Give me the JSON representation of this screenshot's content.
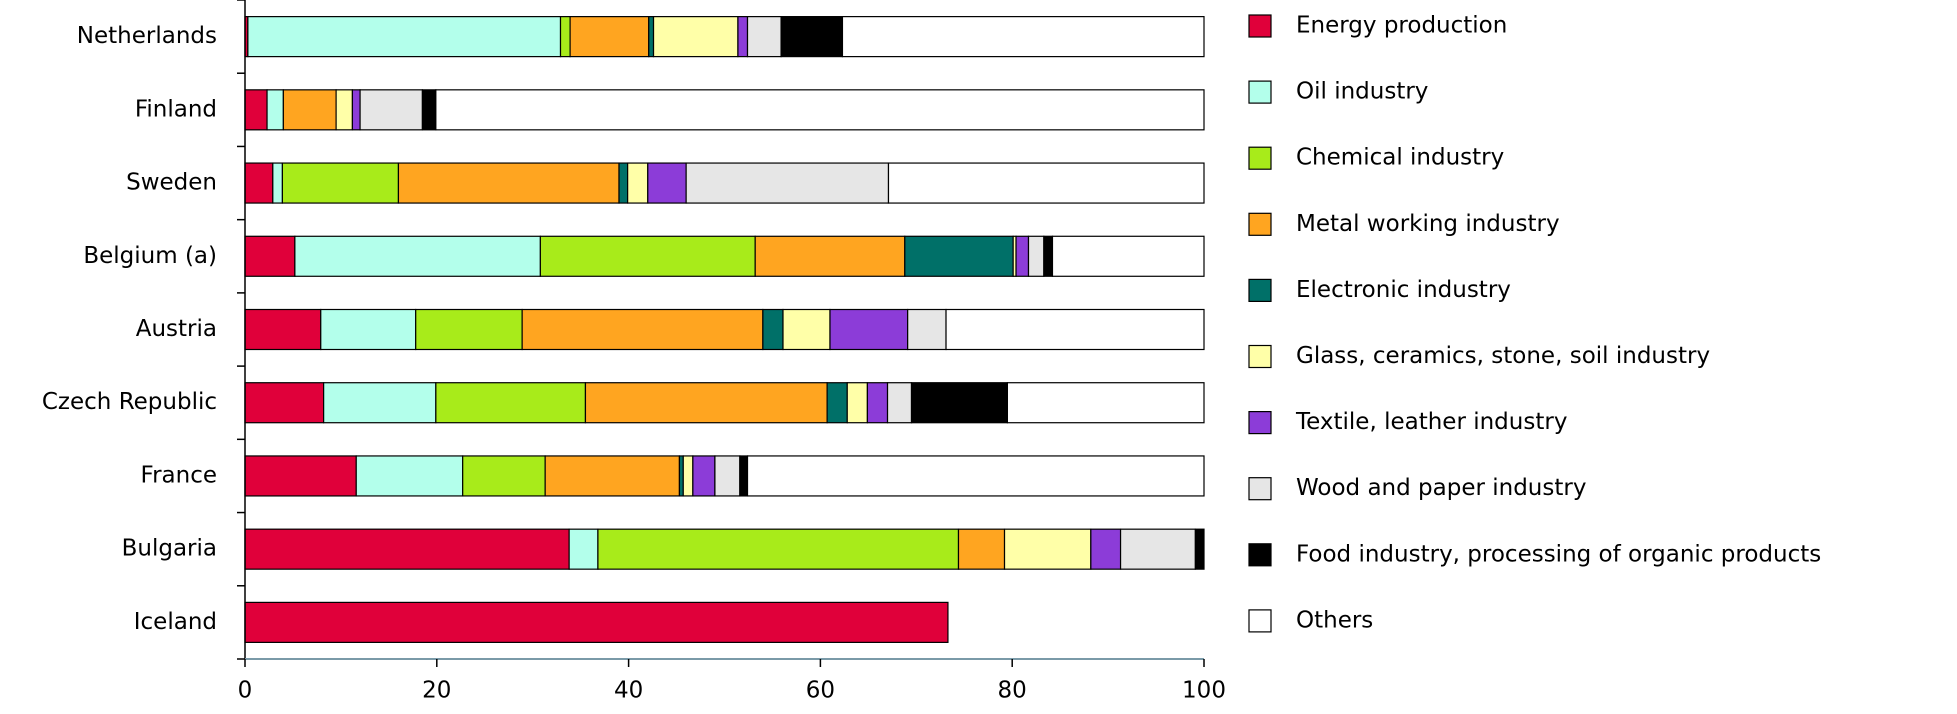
{
  "chart_data": {
    "type": "stacked-bar-horizontal",
    "categories": [
      "Netherlands",
      "Finland",
      "Sweden",
      "Belgium (a)",
      "Austria",
      "Czech Republic",
      "France",
      "Bulgaria",
      "Iceland"
    ],
    "series": [
      {
        "name": "Energy production",
        "color": "#e0003a",
        "values": [
          0.3,
          2.3,
          2.9,
          5.2,
          7.9,
          8.2,
          11.6,
          33.8,
          73.3
        ]
      },
      {
        "name": "Oil industry",
        "color": "#b3ffeb",
        "values": [
          32.6,
          1.7,
          1.0,
          25.6,
          9.9,
          11.7,
          11.1,
          3.0,
          0
        ]
      },
      {
        "name": "Chemical industry",
        "color": "#a8eb1a",
        "values": [
          1.0,
          0,
          12.1,
          22.4,
          11.1,
          15.6,
          8.6,
          37.6,
          0
        ]
      },
      {
        "name": "Metal working industry",
        "color": "#ffa520",
        "values": [
          8.2,
          5.5,
          23.0,
          15.6,
          25.1,
          25.2,
          14.0,
          4.8,
          0
        ]
      },
      {
        "name": "Electronic industry",
        "color": "#007068",
        "values": [
          0.5,
          0,
          0.9,
          11.3,
          2.1,
          2.1,
          0.4,
          0,
          0
        ]
      },
      {
        "name": "Glass, ceramics, stone, soil industry",
        "color": "#ffffa8",
        "values": [
          8.8,
          1.7,
          2.1,
          0.3,
          4.9,
          2.1,
          1.0,
          9.0,
          0
        ]
      },
      {
        "name": "Textile, leather industry",
        "color": "#8c3cd8",
        "values": [
          1.0,
          0.8,
          4.0,
          1.3,
          8.1,
          2.1,
          2.3,
          3.1,
          0
        ]
      },
      {
        "name": "Wood and paper industry",
        "color": "#e6e6e6",
        "values": [
          3.5,
          6.5,
          21.1,
          1.6,
          4.0,
          2.5,
          2.6,
          7.8,
          0
        ]
      },
      {
        "name": "Food industry, processing of organic products",
        "color": "#000000",
        "values": [
          6.4,
          1.4,
          0,
          0.9,
          0,
          10.0,
          0.8,
          0.9,
          0
        ]
      },
      {
        "name": "Others",
        "color": "#ffffff",
        "values": [
          37.7,
          80.1,
          32.9,
          15.8,
          26.9,
          20.5,
          47.6,
          0,
          0
        ]
      }
    ],
    "xlim": [
      0,
      100
    ],
    "xticks": [
      0,
      20,
      40,
      60,
      80,
      100
    ],
    "legend": "right"
  }
}
